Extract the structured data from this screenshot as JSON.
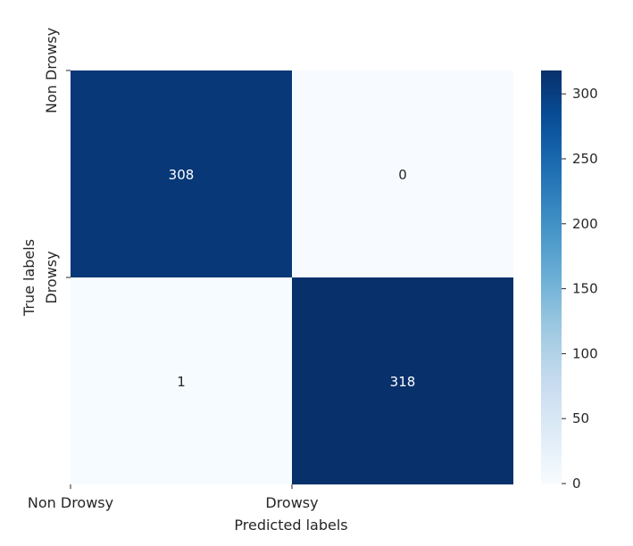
{
  "chart_data": {
    "type": "heatmap",
    "title": "",
    "xlabel": "Predicted labels",
    "ylabel": "True labels",
    "x_categories": [
      "Non Drowsy",
      "Drowsy"
    ],
    "y_categories": [
      "Non Drowsy",
      "Drowsy"
    ],
    "matrix": [
      [
        308,
        0
      ],
      [
        1,
        318
      ]
    ],
    "colormap": "Blues",
    "colorbar": {
      "range": [
        0,
        318
      ],
      "ticks": [
        0,
        50,
        100,
        150,
        200,
        250,
        300
      ],
      "tick_labels": [
        "0",
        "50",
        "100",
        "150",
        "200",
        "250",
        "300"
      ]
    },
    "annotation_colors": {
      "dark_cell": "#ffffff",
      "light_cell": "#262626"
    },
    "colors": {
      "low": "#f7fbff",
      "high": "#08306b"
    }
  }
}
